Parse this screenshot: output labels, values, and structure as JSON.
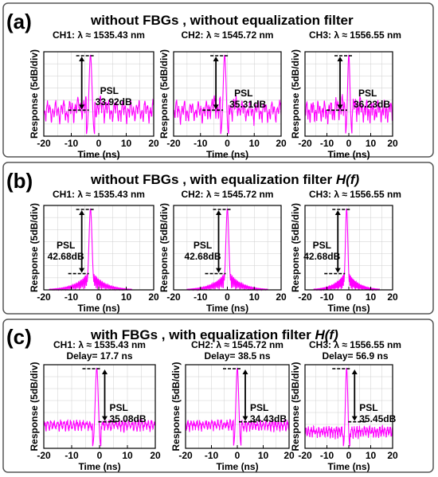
{
  "figure": {
    "panels": [
      {
        "label": "(a)",
        "title": "without FBGs , without equalization filter",
        "title_italic": ""
      },
      {
        "label": "(b)",
        "title": "without FBGs ,  with equalization filter ",
        "title_italic": "H(f)"
      },
      {
        "label": "(c)",
        "title": "with FBGs ,  with equalization filter ",
        "title_italic": "H(f)"
      }
    ],
    "colors": {
      "trace": "#ff00ff",
      "frame": "#000000",
      "panel_border": "#555555",
      "grid": "#cfcfcf"
    }
  },
  "chart_data": [
    {
      "type": "line",
      "panel": "(a)",
      "title": "CH1: λ ≈ 1535.43 nm",
      "subtitle": "",
      "xlabel": "Time (ns)",
      "ylabel": "Response (5dB/div)",
      "xlim": [
        -20,
        20
      ],
      "xticks": [
        -20,
        -10,
        0,
        10,
        20
      ],
      "grid": true,
      "peak_x": -3,
      "psl_label": "PSL",
      "psl_value": "33.92dB",
      "psl_db": 33.92,
      "profile": "a"
    },
    {
      "type": "line",
      "panel": "(a)",
      "title": "CH2: λ ≈ 1545.72 nm",
      "subtitle": "",
      "xlabel": "Time (ns)",
      "ylabel": "Response (5dB/div)",
      "xlim": [
        -20,
        20
      ],
      "xticks": [
        -20,
        -10,
        0,
        10,
        20
      ],
      "grid": true,
      "peak_x": -1,
      "psl_label": "PSL",
      "psl_value": "35.31dB",
      "psl_db": 35.31,
      "profile": "a"
    },
    {
      "type": "line",
      "panel": "(a)",
      "title": "CH3: λ ≈ 1556.55 nm",
      "subtitle": "",
      "xlabel": "Time (ns)",
      "ylabel": "Response (5dB/div)",
      "xlim": [
        -20,
        20
      ],
      "xticks": [
        -20,
        -10,
        0,
        10,
        20
      ],
      "grid": true,
      "peak_x": 0,
      "psl_label": "PSL",
      "psl_value": "36.23dB",
      "psl_db": 36.23,
      "profile": "a"
    },
    {
      "type": "line",
      "panel": "(b)",
      "title": "CH1: λ ≈ 1535.43 nm",
      "subtitle": "",
      "xlabel": "Time (ns)",
      "ylabel": "Response (5dB/div)",
      "xlim": [
        -20,
        20
      ],
      "xticks": [
        -20,
        -10,
        0,
        10,
        20
      ],
      "grid": true,
      "peak_x": -3,
      "psl_label": "PSL",
      "psl_value": "42.68dB",
      "psl_db": 42.68,
      "profile": "b"
    },
    {
      "type": "line",
      "panel": "(b)",
      "title": "CH2: λ ≈ 1545.72 nm",
      "subtitle": "",
      "xlabel": "Time (ns)",
      "ylabel": "Response (5dB/div)",
      "xlim": [
        -20,
        20
      ],
      "xticks": [
        -20,
        -10,
        0,
        10,
        20
      ],
      "grid": true,
      "peak_x": 0,
      "psl_label": "PSL",
      "psl_value": "42.68dB",
      "psl_db": 42.68,
      "profile": "b"
    },
    {
      "type": "line",
      "panel": "(b)",
      "title": "CH3: λ ≈ 1556.55 nm",
      "subtitle": "",
      "xlabel": "Time (ns)",
      "ylabel": "Response (5dB/div)",
      "xlim": [
        -20,
        20
      ],
      "xticks": [
        -20,
        -10,
        0,
        10,
        20
      ],
      "grid": true,
      "peak_x": -1,
      "psl_label": "PSL",
      "psl_value": "42.68dB",
      "psl_db": 42.68,
      "profile": "b"
    },
    {
      "type": "line",
      "panel": "(c)",
      "title": "CH1: λ ≈ 1535.43 nm",
      "subtitle": "Delay= 17.7 ns",
      "xlabel": "Time (ns)",
      "ylabel": "Response (5dB/div)",
      "xlim": [
        -20,
        20
      ],
      "xticks": [
        -20,
        -10,
        0,
        10,
        20
      ],
      "grid": true,
      "peak_x": -1,
      "psl_label": "PSL",
      "psl_value": "35.08dB",
      "psl_db": 35.08,
      "profile": "c"
    },
    {
      "type": "line",
      "panel": "(c)",
      "title": "CH2: λ ≈ 1545.72 nm",
      "subtitle": "Delay= 38.5 ns",
      "xlabel": "Time (ns)",
      "ylabel": "Response (5dB/div)",
      "xlim": [
        -20,
        20
      ],
      "xticks": [
        -20,
        -10,
        0,
        10,
        20
      ],
      "grid": true,
      "peak_x": 0,
      "psl_label": "PSL",
      "psl_value": "34.43dB",
      "psl_db": 34.43,
      "profile": "c"
    },
    {
      "type": "line",
      "panel": "(c)",
      "title": "CH3: λ ≈ 1556.55 nm",
      "subtitle": "Delay= 56.9 ns",
      "xlabel": "Time (ns)",
      "ylabel": "Response (5dB/div)",
      "xlim": [
        -20,
        20
      ],
      "xticks": [
        -20,
        -10,
        0,
        10,
        20
      ],
      "grid": true,
      "peak_x": -1,
      "psl_label": "PSL",
      "psl_value": "35.45dB",
      "psl_db": 35.45,
      "profile": "c"
    }
  ]
}
